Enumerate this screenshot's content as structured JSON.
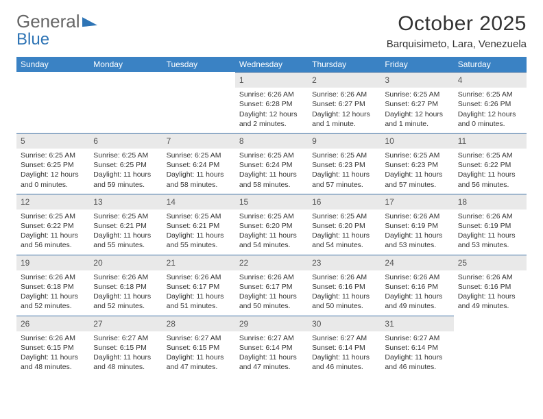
{
  "logo": {
    "line1": "General",
    "line2": "Blue"
  },
  "title": "October 2025",
  "location": "Barquisimeto, Lara, Venezuela",
  "colors": {
    "header_bg": "#3a82c4",
    "header_text": "#ffffff",
    "daynum_bg": "#e9e9e9",
    "daynum_border": "#3a6ea5",
    "logo_blue": "#2e74b5",
    "body_text": "#333333"
  },
  "fonts": {
    "title_size_pt": 22,
    "location_size_pt": 11,
    "weekday_size_pt": 9,
    "cell_size_pt": 8
  },
  "weekdays": [
    "Sunday",
    "Monday",
    "Tuesday",
    "Wednesday",
    "Thursday",
    "Friday",
    "Saturday"
  ],
  "weeks": [
    [
      {
        "day": "",
        "sunrise": "",
        "sunset": "",
        "daylight": ""
      },
      {
        "day": "",
        "sunrise": "",
        "sunset": "",
        "daylight": ""
      },
      {
        "day": "",
        "sunrise": "",
        "sunset": "",
        "daylight": ""
      },
      {
        "day": "1",
        "sunrise": "Sunrise: 6:26 AM",
        "sunset": "Sunset: 6:28 PM",
        "daylight": "Daylight: 12 hours and 2 minutes."
      },
      {
        "day": "2",
        "sunrise": "Sunrise: 6:26 AM",
        "sunset": "Sunset: 6:27 PM",
        "daylight": "Daylight: 12 hours and 1 minute."
      },
      {
        "day": "3",
        "sunrise": "Sunrise: 6:25 AM",
        "sunset": "Sunset: 6:27 PM",
        "daylight": "Daylight: 12 hours and 1 minute."
      },
      {
        "day": "4",
        "sunrise": "Sunrise: 6:25 AM",
        "sunset": "Sunset: 6:26 PM",
        "daylight": "Daylight: 12 hours and 0 minutes."
      }
    ],
    [
      {
        "day": "5",
        "sunrise": "Sunrise: 6:25 AM",
        "sunset": "Sunset: 6:25 PM",
        "daylight": "Daylight: 12 hours and 0 minutes."
      },
      {
        "day": "6",
        "sunrise": "Sunrise: 6:25 AM",
        "sunset": "Sunset: 6:25 PM",
        "daylight": "Daylight: 11 hours and 59 minutes."
      },
      {
        "day": "7",
        "sunrise": "Sunrise: 6:25 AM",
        "sunset": "Sunset: 6:24 PM",
        "daylight": "Daylight: 11 hours and 58 minutes."
      },
      {
        "day": "8",
        "sunrise": "Sunrise: 6:25 AM",
        "sunset": "Sunset: 6:24 PM",
        "daylight": "Daylight: 11 hours and 58 minutes."
      },
      {
        "day": "9",
        "sunrise": "Sunrise: 6:25 AM",
        "sunset": "Sunset: 6:23 PM",
        "daylight": "Daylight: 11 hours and 57 minutes."
      },
      {
        "day": "10",
        "sunrise": "Sunrise: 6:25 AM",
        "sunset": "Sunset: 6:23 PM",
        "daylight": "Daylight: 11 hours and 57 minutes."
      },
      {
        "day": "11",
        "sunrise": "Sunrise: 6:25 AM",
        "sunset": "Sunset: 6:22 PM",
        "daylight": "Daylight: 11 hours and 56 minutes."
      }
    ],
    [
      {
        "day": "12",
        "sunrise": "Sunrise: 6:25 AM",
        "sunset": "Sunset: 6:22 PM",
        "daylight": "Daylight: 11 hours and 56 minutes."
      },
      {
        "day": "13",
        "sunrise": "Sunrise: 6:25 AM",
        "sunset": "Sunset: 6:21 PM",
        "daylight": "Daylight: 11 hours and 55 minutes."
      },
      {
        "day": "14",
        "sunrise": "Sunrise: 6:25 AM",
        "sunset": "Sunset: 6:21 PM",
        "daylight": "Daylight: 11 hours and 55 minutes."
      },
      {
        "day": "15",
        "sunrise": "Sunrise: 6:25 AM",
        "sunset": "Sunset: 6:20 PM",
        "daylight": "Daylight: 11 hours and 54 minutes."
      },
      {
        "day": "16",
        "sunrise": "Sunrise: 6:25 AM",
        "sunset": "Sunset: 6:20 PM",
        "daylight": "Daylight: 11 hours and 54 minutes."
      },
      {
        "day": "17",
        "sunrise": "Sunrise: 6:26 AM",
        "sunset": "Sunset: 6:19 PM",
        "daylight": "Daylight: 11 hours and 53 minutes."
      },
      {
        "day": "18",
        "sunrise": "Sunrise: 6:26 AM",
        "sunset": "Sunset: 6:19 PM",
        "daylight": "Daylight: 11 hours and 53 minutes."
      }
    ],
    [
      {
        "day": "19",
        "sunrise": "Sunrise: 6:26 AM",
        "sunset": "Sunset: 6:18 PM",
        "daylight": "Daylight: 11 hours and 52 minutes."
      },
      {
        "day": "20",
        "sunrise": "Sunrise: 6:26 AM",
        "sunset": "Sunset: 6:18 PM",
        "daylight": "Daylight: 11 hours and 52 minutes."
      },
      {
        "day": "21",
        "sunrise": "Sunrise: 6:26 AM",
        "sunset": "Sunset: 6:17 PM",
        "daylight": "Daylight: 11 hours and 51 minutes."
      },
      {
        "day": "22",
        "sunrise": "Sunrise: 6:26 AM",
        "sunset": "Sunset: 6:17 PM",
        "daylight": "Daylight: 11 hours and 50 minutes."
      },
      {
        "day": "23",
        "sunrise": "Sunrise: 6:26 AM",
        "sunset": "Sunset: 6:16 PM",
        "daylight": "Daylight: 11 hours and 50 minutes."
      },
      {
        "day": "24",
        "sunrise": "Sunrise: 6:26 AM",
        "sunset": "Sunset: 6:16 PM",
        "daylight": "Daylight: 11 hours and 49 minutes."
      },
      {
        "day": "25",
        "sunrise": "Sunrise: 6:26 AM",
        "sunset": "Sunset: 6:16 PM",
        "daylight": "Daylight: 11 hours and 49 minutes."
      }
    ],
    [
      {
        "day": "26",
        "sunrise": "Sunrise: 6:26 AM",
        "sunset": "Sunset: 6:15 PM",
        "daylight": "Daylight: 11 hours and 48 minutes."
      },
      {
        "day": "27",
        "sunrise": "Sunrise: 6:27 AM",
        "sunset": "Sunset: 6:15 PM",
        "daylight": "Daylight: 11 hours and 48 minutes."
      },
      {
        "day": "28",
        "sunrise": "Sunrise: 6:27 AM",
        "sunset": "Sunset: 6:15 PM",
        "daylight": "Daylight: 11 hours and 47 minutes."
      },
      {
        "day": "29",
        "sunrise": "Sunrise: 6:27 AM",
        "sunset": "Sunset: 6:14 PM",
        "daylight": "Daylight: 11 hours and 47 minutes."
      },
      {
        "day": "30",
        "sunrise": "Sunrise: 6:27 AM",
        "sunset": "Sunset: 6:14 PM",
        "daylight": "Daylight: 11 hours and 46 minutes."
      },
      {
        "day": "31",
        "sunrise": "Sunrise: 6:27 AM",
        "sunset": "Sunset: 6:14 PM",
        "daylight": "Daylight: 11 hours and 46 minutes."
      },
      {
        "day": "",
        "sunrise": "",
        "sunset": "",
        "daylight": ""
      }
    ]
  ]
}
